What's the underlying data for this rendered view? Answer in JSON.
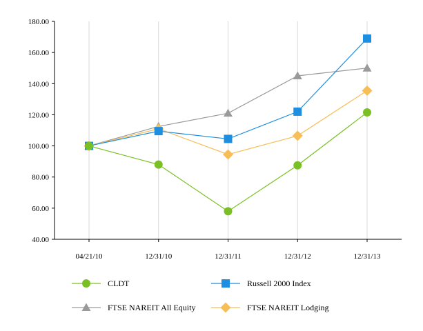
{
  "chart_data": {
    "type": "line",
    "title": "",
    "xlabel": "",
    "ylabel": "",
    "categories": [
      "04/21/10",
      "12/31/10",
      "12/31/11",
      "12/31/12",
      "12/31/13"
    ],
    "ylim": [
      40,
      180
    ],
    "yticks": [
      "40.00",
      "60.00",
      "80.00",
      "100.00",
      "120.00",
      "140.00",
      "160.00",
      "180.00"
    ],
    "grid": "vertical",
    "legend_position": "bottom",
    "series": [
      {
        "name": "CLDT",
        "values": [
          100,
          88,
          58,
          87.5,
          121.5
        ],
        "color": "#7ac025",
        "marker": "circle"
      },
      {
        "name": "Russell 2000 Index",
        "values": [
          100,
          109.5,
          104.5,
          122,
          169
        ],
        "color": "#1e8ee0",
        "marker": "square"
      },
      {
        "name": "FTSE NAREIT All Equity",
        "values": [
          100,
          112.5,
          121,
          145,
          150
        ],
        "color": "#9a9a9a",
        "marker": "triangle"
      },
      {
        "name": "FTSE NAREIT Lodging",
        "values": [
          100,
          111,
          94.5,
          106.5,
          135.5
        ],
        "color": "#f7be57",
        "marker": "diamond"
      }
    ]
  }
}
